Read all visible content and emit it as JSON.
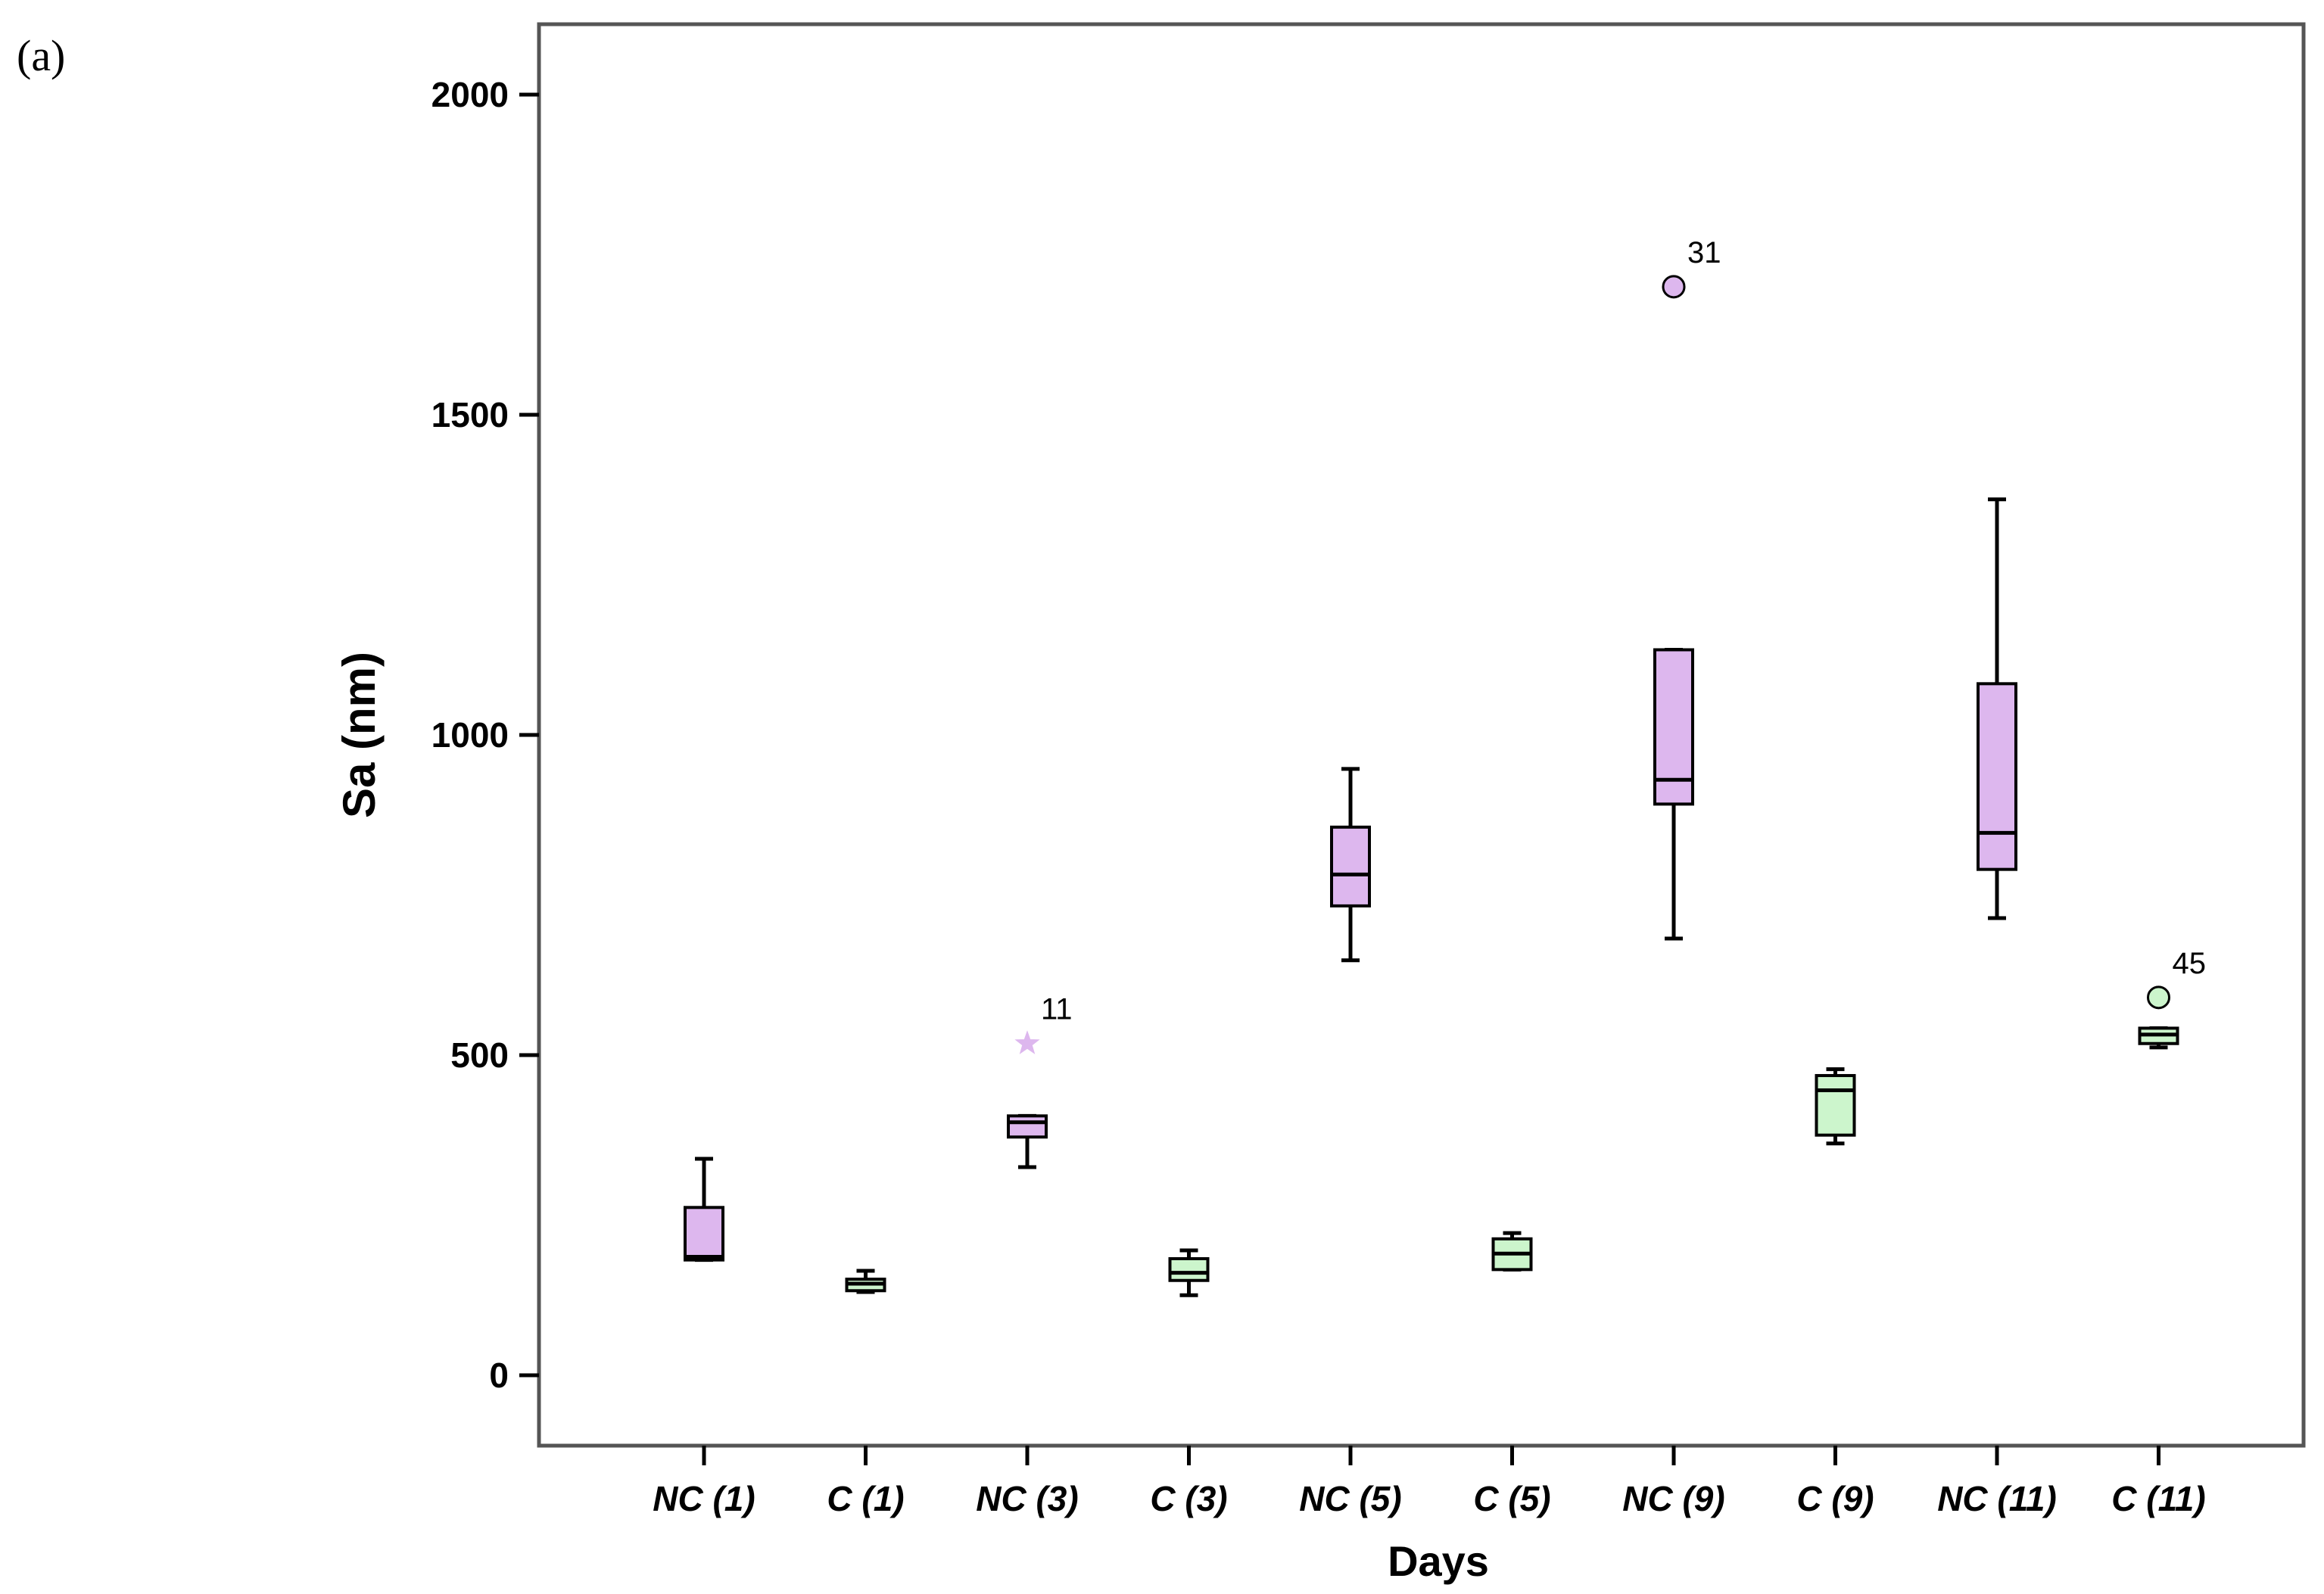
{
  "figure_label": "(a)",
  "colors": {
    "nc_fill": "#DDB7EE",
    "c_fill": "#CCF5CC",
    "stroke": "#000000",
    "frame": "#555555"
  },
  "chart_data": {
    "type": "boxplot",
    "title": "",
    "xlabel": "Days",
    "ylabel": "Sa (nm)",
    "ylim": [
      -110,
      2110
    ],
    "yticks": [
      0,
      500,
      1000,
      1500,
      2000
    ],
    "categories": [
      "NC (1)",
      "C (1)",
      "NC (3)",
      "C (3)",
      "NC (5)",
      "C (5)",
      "NC (9)",
      "C (9)",
      "NC (11)",
      "C (11)"
    ],
    "groups": [
      "NC",
      "C",
      "NC",
      "C",
      "NC",
      "C",
      "NC",
      "C",
      "NC",
      "C"
    ],
    "boxes": [
      {
        "category": "NC (1)",
        "whisker_low": 180,
        "q1": 180,
        "median": 185,
        "q3": 262,
        "whisker_high": 338
      },
      {
        "category": "C (1)",
        "whisker_low": 130,
        "q1": 132,
        "median": 143,
        "q3": 150,
        "whisker_high": 163
      },
      {
        "category": "NC (3)",
        "whisker_low": 325,
        "q1": 372,
        "median": 395,
        "q3": 405,
        "whisker_high": 405
      },
      {
        "category": "C (3)",
        "whisker_low": 125,
        "q1": 148,
        "median": 160,
        "q3": 182,
        "whisker_high": 195
      },
      {
        "category": "NC (5)",
        "whisker_low": 648,
        "q1": 733,
        "median": 782,
        "q3": 856,
        "whisker_high": 947
      },
      {
        "category": "C (5)",
        "whisker_low": 165,
        "q1": 165,
        "median": 190,
        "q3": 213,
        "whisker_high": 222
      },
      {
        "category": "NC (9)",
        "whisker_low": 682,
        "q1": 892,
        "median": 930,
        "q3": 1133,
        "whisker_high": 1133
      },
      {
        "category": "C (9)",
        "whisker_low": 362,
        "q1": 375,
        "median": 445,
        "q3": 468,
        "whisker_high": 478
      },
      {
        "category": "NC (11)",
        "whisker_low": 714,
        "q1": 790,
        "median": 847,
        "q3": 1080,
        "whisker_high": 1368
      },
      {
        "category": "C (11)",
        "whisker_low": 512,
        "q1": 518,
        "median": 532,
        "q3": 542,
        "whisker_high": 542
      }
    ],
    "outliers": [
      {
        "category": "NC (3)",
        "value": 518,
        "marker": "star",
        "label": "11"
      },
      {
        "category": "NC (9)",
        "value": 1700,
        "marker": "circle",
        "label": "31"
      },
      {
        "category": "C (11)",
        "value": 590,
        "marker": "circle",
        "label": "45"
      }
    ]
  }
}
